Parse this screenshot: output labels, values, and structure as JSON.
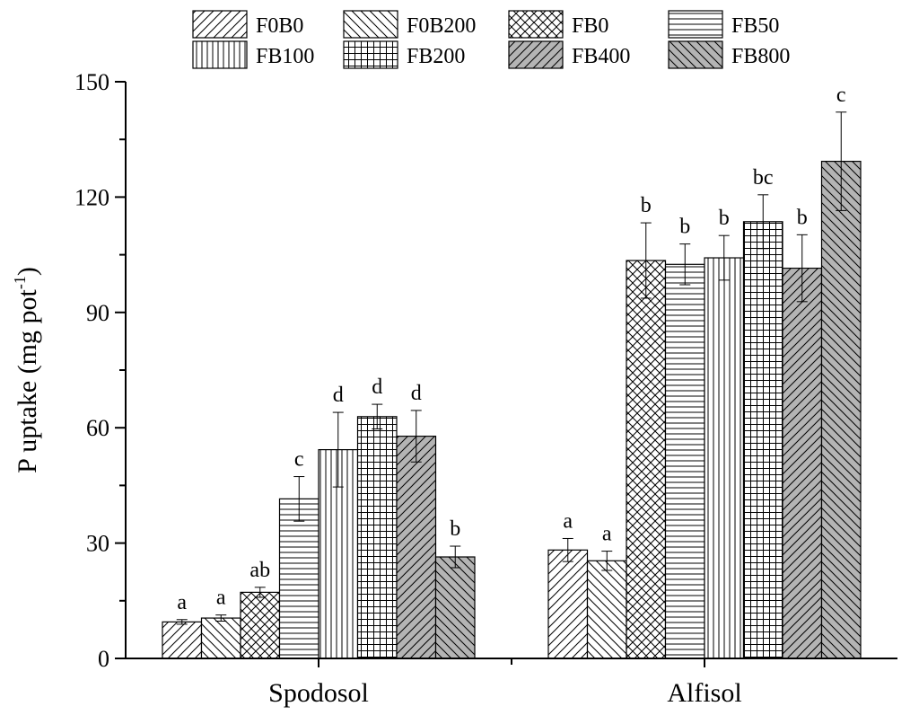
{
  "chart_data": {
    "type": "bar",
    "title": "",
    "xlabel": "",
    "ylabel": "P uptake (mg pot",
    "ylabel_superscript": "-1",
    "ylabel_close": ")",
    "ylim": [
      0,
      150
    ],
    "yticks": [
      0,
      30,
      60,
      90,
      120,
      150
    ],
    "categories": [
      "Spodosol",
      "Alfisol"
    ],
    "series": [
      {
        "name": "F0B0",
        "pattern": "diag-fwd",
        "fill": "#ffffff",
        "values": [
          9.5,
          28.2
        ],
        "errors": [
          0.6,
          3.0
        ],
        "labels": [
          "a",
          "a"
        ]
      },
      {
        "name": "F0B200",
        "pattern": "diag-back",
        "fill": "#ffffff",
        "values": [
          10.5,
          25.4
        ],
        "errors": [
          0.8,
          2.5
        ],
        "labels": [
          "a",
          "a"
        ]
      },
      {
        "name": "FB0",
        "pattern": "crosshatch",
        "fill": "#ffffff",
        "values": [
          17.2,
          103.5
        ],
        "errors": [
          1.3,
          9.8
        ],
        "labels": [
          "ab",
          "b"
        ]
      },
      {
        "name": "FB50",
        "pattern": "horizontal",
        "fill": "#ffffff",
        "values": [
          41.5,
          102.5
        ],
        "errors": [
          5.8,
          5.3
        ],
        "labels": [
          "c",
          "b"
        ]
      },
      {
        "name": "FB100",
        "pattern": "vertical",
        "fill": "#ffffff",
        "values": [
          54.3,
          104.2
        ],
        "errors": [
          9.7,
          5.8
        ],
        "labels": [
          "d",
          "b"
        ]
      },
      {
        "name": "FB200",
        "pattern": "grid",
        "fill": "#ffffff",
        "values": [
          62.9,
          113.6
        ],
        "errors": [
          3.2,
          7.0
        ],
        "labels": [
          "d",
          "bc"
        ]
      },
      {
        "name": "FB400",
        "pattern": "diag-fwd",
        "fill": "#b4b4b4",
        "values": [
          57.8,
          101.5
        ],
        "errors": [
          6.7,
          8.7
        ],
        "labels": [
          "d",
          "b"
        ]
      },
      {
        "name": "FB800",
        "pattern": "diag-back",
        "fill": "#b4b4b4",
        "values": [
          26.4,
          129.3
        ],
        "errors": [
          2.8,
          12.8
        ],
        "labels": [
          "b",
          "c"
        ]
      }
    ],
    "legend_position": "top",
    "grid": false
  }
}
